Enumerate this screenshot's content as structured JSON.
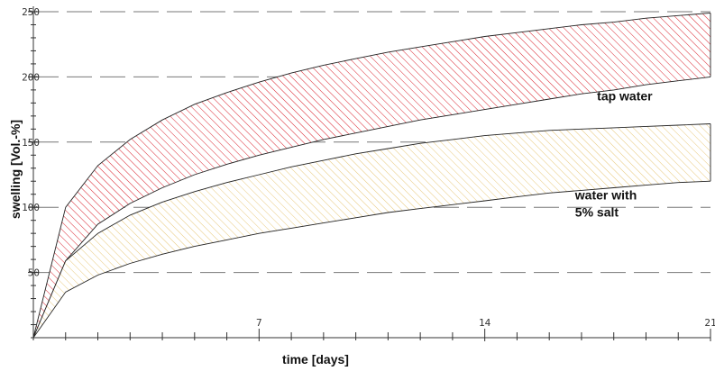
{
  "chart_data": {
    "type": "area",
    "title": "",
    "xlabel": "time [days]",
    "ylabel": "swelling [Vol.-%]",
    "xlim": [
      0,
      21
    ],
    "ylim": [
      0,
      250
    ],
    "x_ticks": [
      7,
      14,
      21
    ],
    "y_ticks": [
      50,
      100,
      150,
      200,
      250
    ],
    "grid": "horizontal dashed",
    "x": [
      0,
      1,
      2,
      3,
      4,
      5,
      6,
      7,
      8,
      9,
      10,
      11,
      12,
      13,
      14,
      15,
      16,
      17,
      18,
      19,
      20,
      21
    ],
    "series": [
      {
        "name": "tap water",
        "color": "#d9202b",
        "upper": [
          0,
          100,
          132,
          152,
          167,
          179,
          188,
          196,
          203,
          209,
          214,
          219,
          223,
          227,
          231,
          234,
          237,
          240,
          242,
          245,
          247,
          249
        ],
        "lower": [
          0,
          59,
          87,
          103,
          115,
          125,
          133,
          140,
          146,
          152,
          157,
          162,
          167,
          171,
          175,
          179,
          183,
          187,
          190,
          194,
          197,
          200
        ]
      },
      {
        "name": "water with 5% salt",
        "color": "#e8c87a",
        "upper": [
          0,
          59,
          80,
          94,
          104,
          112,
          119,
          125,
          131,
          136,
          141,
          145,
          149,
          152,
          155,
          157,
          159,
          160,
          161,
          162,
          163,
          164
        ],
        "lower": [
          0,
          35,
          48,
          57,
          64,
          70,
          75,
          80,
          84,
          88,
          92,
          96,
          99,
          102,
          105,
          108,
          111,
          113,
          115,
          117,
          119,
          120
        ]
      }
    ],
    "band_labels": [
      {
        "lines": [
          "tap water"
        ]
      },
      {
        "lines": [
          "water with",
          "5% salt"
        ]
      }
    ]
  }
}
